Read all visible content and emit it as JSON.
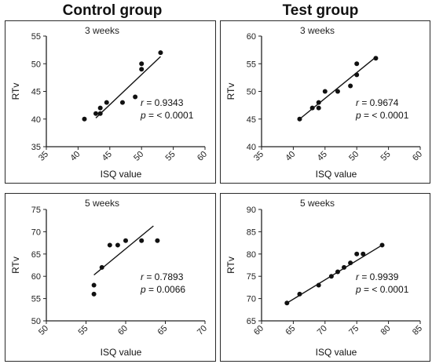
{
  "header": {
    "control_title": "Control group",
    "test_title": "Test group"
  },
  "chart_data": [
    {
      "type": "scatter",
      "group": "Control group",
      "title": "3 weeks",
      "xlabel": "ISQ value",
      "ylabel": "RTv",
      "xlim": [
        35,
        60
      ],
      "ylim": [
        35,
        55
      ],
      "xticks": [
        "35",
        "40",
        "45",
        "50",
        "55",
        "60"
      ],
      "yticks": [
        "35",
        "40",
        "45",
        "50",
        "55"
      ],
      "points": [
        [
          41,
          40
        ],
        [
          42.8,
          41
        ],
        [
          43.5,
          41
        ],
        [
          43.5,
          42
        ],
        [
          44.5,
          43
        ],
        [
          47,
          43
        ],
        [
          49,
          44
        ],
        [
          50,
          49
        ],
        [
          50,
          50
        ],
        [
          53,
          52
        ]
      ],
      "fit_line": [
        [
          42.8,
          40.2
        ],
        [
          53,
          51.3
        ]
      ],
      "r_label": "r",
      "r_value": "= 0.9343",
      "p_label": "p",
      "p_value": "= < 0.0001"
    },
    {
      "type": "scatter",
      "group": "Test group",
      "title": "3 weeks",
      "xlabel": "ISQ value",
      "ylabel": "RTv",
      "xlim": [
        35,
        60
      ],
      "ylim": [
        40,
        60
      ],
      "xticks": [
        "35",
        "40",
        "45",
        "50",
        "55",
        "60"
      ],
      "yticks": [
        "40",
        "45",
        "50",
        "55",
        "60"
      ],
      "points": [
        [
          41,
          45
        ],
        [
          43,
          47
        ],
        [
          44,
          47
        ],
        [
          44,
          48
        ],
        [
          45,
          50
        ],
        [
          47,
          50
        ],
        [
          49,
          51
        ],
        [
          50,
          53
        ],
        [
          50,
          55
        ],
        [
          53,
          56
        ]
      ],
      "fit_line": [
        [
          41,
          45
        ],
        [
          53,
          56.2
        ]
      ],
      "r_label": "r",
      "r_value": "= 0.9674",
      "p_label": "p",
      "p_value": "= < 0.0001"
    },
    {
      "type": "scatter",
      "group": "Control group",
      "title": "5 weeks",
      "xlabel": "ISQ value",
      "ylabel": "RTv",
      "xlim": [
        50,
        70
      ],
      "ylim": [
        50,
        75
      ],
      "xticks": [
        "50",
        "55",
        "60",
        "65",
        "70"
      ],
      "yticks": [
        "50",
        "55",
        "60",
        "65",
        "70",
        "75"
      ],
      "points": [
        [
          56,
          56
        ],
        [
          56,
          58
        ],
        [
          57,
          62
        ],
        [
          58,
          67
        ],
        [
          59,
          67
        ],
        [
          60,
          68
        ],
        [
          62,
          68
        ],
        [
          64,
          68
        ]
      ],
      "fit_line": [
        [
          56,
          60.3
        ],
        [
          63.5,
          71.3
        ]
      ],
      "r_label": "r",
      "r_value": "= 0.7893",
      "p_label": "p",
      "p_value": "= 0.0066"
    },
    {
      "type": "scatter",
      "group": "Test group",
      "title": "5 weeks",
      "xlabel": "ISQ value",
      "ylabel": "RTv",
      "xlim": [
        60,
        85
      ],
      "ylim": [
        65,
        90
      ],
      "xticks": [
        "60",
        "65",
        "70",
        "75",
        "80",
        "85"
      ],
      "yticks": [
        "65",
        "70",
        "75",
        "80",
        "85",
        "90"
      ],
      "points": [
        [
          64,
          69
        ],
        [
          66,
          71
        ],
        [
          69,
          73
        ],
        [
          71,
          75
        ],
        [
          72,
          76
        ],
        [
          73,
          77
        ],
        [
          74,
          78
        ],
        [
          75,
          80
        ],
        [
          76,
          80
        ],
        [
          79,
          82
        ]
      ],
      "fit_line": [
        [
          64,
          69
        ],
        [
          79,
          82
        ]
      ],
      "r_label": "r",
      "r_value": "= 0.9939",
      "p_label": "p",
      "p_value": "= < 0.0001"
    }
  ]
}
